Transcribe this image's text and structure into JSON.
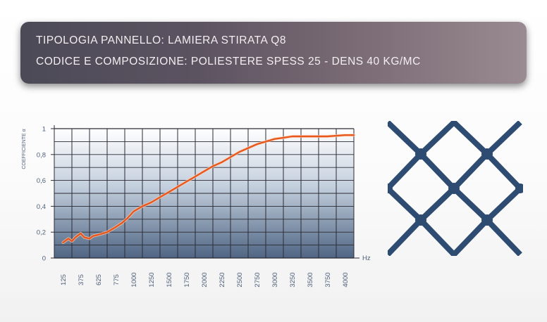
{
  "header": {
    "line1": "TIPOLOGIA PANNELLO: LAMIERA STIRATA Q8",
    "line2": "CODICE E COMPOSIZIONE: POLIESTERE SPESS 25 - DENS 40 KG/MC"
  },
  "chart_data": {
    "type": "line",
    "title": "",
    "xlabel": "Hz",
    "ylabel": "COEFFICIENTE α",
    "ylim": [
      0,
      1
    ],
    "yticks": [
      "0",
      "0,2",
      "0,4",
      "0,6",
      "0,8",
      "1"
    ],
    "xticks": [
      "125",
      "375",
      "625",
      "775",
      "1000",
      "1250",
      "1500",
      "1750",
      "2000",
      "2250",
      "2500",
      "2750",
      "3000",
      "3250",
      "3500",
      "3750",
      "4000"
    ],
    "grid": true,
    "series": [
      {
        "color": "#e8571e",
        "x": [
          125,
          200,
          250,
          300,
          375,
          425,
          500,
          550,
          625,
          700,
          775,
          850,
          925,
          1000,
          1125,
          1250,
          1375,
          1500,
          1625,
          1750,
          1875,
          2000,
          2125,
          2250,
          2375,
          2500,
          2625,
          2750,
          2875,
          3000,
          3125,
          3250,
          3375,
          3500,
          3625,
          3750,
          3875,
          4000,
          4125
        ],
        "y": [
          0.12,
          0.15,
          0.13,
          0.16,
          0.19,
          0.16,
          0.15,
          0.17,
          0.18,
          0.2,
          0.24,
          0.27,
          0.31,
          0.36,
          0.4,
          0.43,
          0.47,
          0.51,
          0.55,
          0.59,
          0.63,
          0.67,
          0.71,
          0.74,
          0.78,
          0.82,
          0.85,
          0.88,
          0.9,
          0.92,
          0.93,
          0.94,
          0.94,
          0.94,
          0.94,
          0.94,
          0.945,
          0.95,
          0.95
        ]
      }
    ]
  },
  "mesh_icon": "expanded-metal-diamond-mesh",
  "colors": {
    "plot_fill_top": "#ffffff",
    "plot_fill_bottom": "#4f6583",
    "grid": "#2b2b35",
    "line": "#e8571e",
    "mesh": "#2e4b72",
    "tick_text": "#4d5f78"
  }
}
